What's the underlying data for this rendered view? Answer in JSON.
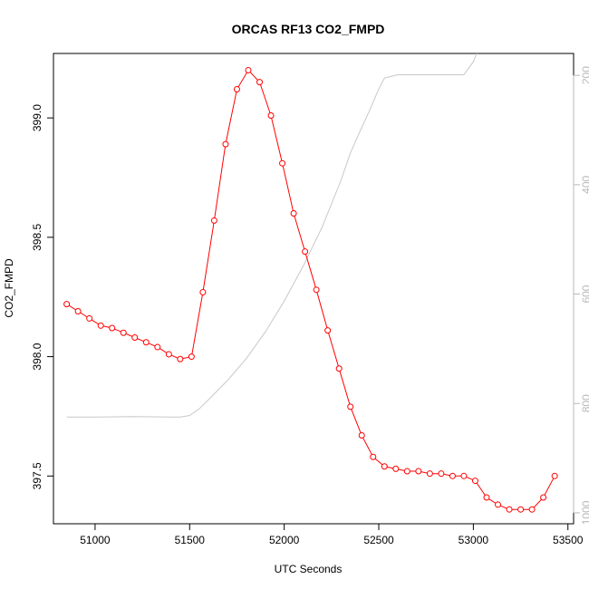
{
  "chart_data": {
    "type": "line",
    "title": "ORCAS RF13 CO2_FMPD",
    "xlabel": "UTC Seconds",
    "ylabel": "CO2_FMPD",
    "xlim": [
      50780,
      53530
    ],
    "ylim": [
      397.3,
      399.27
    ],
    "y2lim": [
      1020,
      160
    ],
    "x_ticks": [
      51000,
      51500,
      52000,
      52500,
      53000,
      53500
    ],
    "y_ticks": [
      397.5,
      398.0,
      398.5,
      399.0
    ],
    "y2_ticks": [
      200,
      400,
      600,
      800,
      1000
    ],
    "x_tick_labels": [
      "51000",
      "51500",
      "52000",
      "52500",
      "53000",
      "53500"
    ],
    "y_tick_labels": [
      "397.5",
      "398.0",
      "398.5",
      "399.0"
    ],
    "y2_tick_labels": [
      "200",
      "400",
      "600",
      "800",
      "1000"
    ],
    "series": [
      {
        "color": "#ff0000",
        "marker": "open-circle",
        "x": [
          50850,
          50910,
          50970,
          51030,
          51090,
          51150,
          51210,
          51270,
          51330,
          51390,
          51450,
          51510,
          51570,
          51630,
          51690,
          51750,
          51810,
          51870,
          51930,
          51990,
          52050,
          52110,
          52170,
          52230,
          52290,
          52350,
          52410,
          52470,
          52530,
          52590,
          52650,
          52710,
          52770,
          52830,
          52890,
          52950,
          53010,
          53070,
          53130,
          53190,
          53250,
          53310,
          53370,
          53430
        ],
        "y": [
          398.22,
          398.19,
          398.16,
          398.13,
          398.12,
          398.1,
          398.08,
          398.06,
          398.04,
          398.01,
          397.99,
          398.0,
          398.27,
          398.57,
          398.89,
          399.12,
          399.2,
          399.15,
          399.01,
          398.81,
          398.6,
          398.44,
          398.28,
          398.11,
          397.95,
          397.79,
          397.67,
          397.58,
          397.54,
          397.53,
          397.52,
          397.52,
          397.51,
          397.51,
          397.5,
          397.5,
          397.48,
          397.41,
          397.38,
          397.36,
          397.36,
          397.36,
          397.41,
          397.5
        ]
      },
      {
        "color": "#c8c8c8",
        "axis": "right",
        "x": [
          50850,
          51000,
          51200,
          51400,
          51450,
          51500,
          51550,
          51600,
          51700,
          51800,
          51900,
          52000,
          52100,
          52200,
          52300,
          52350,
          52400,
          52450,
          52500,
          52530,
          52600,
          52800,
          52950,
          53000,
          53030,
          53060
        ],
        "y": [
          825,
          825,
          824,
          825,
          825,
          822,
          810,
          793,
          758,
          718,
          669,
          613,
          549,
          478,
          392,
          342,
          303,
          265,
          225,
          205,
          199,
          199,
          199,
          175,
          150,
          120
        ]
      }
    ]
  }
}
